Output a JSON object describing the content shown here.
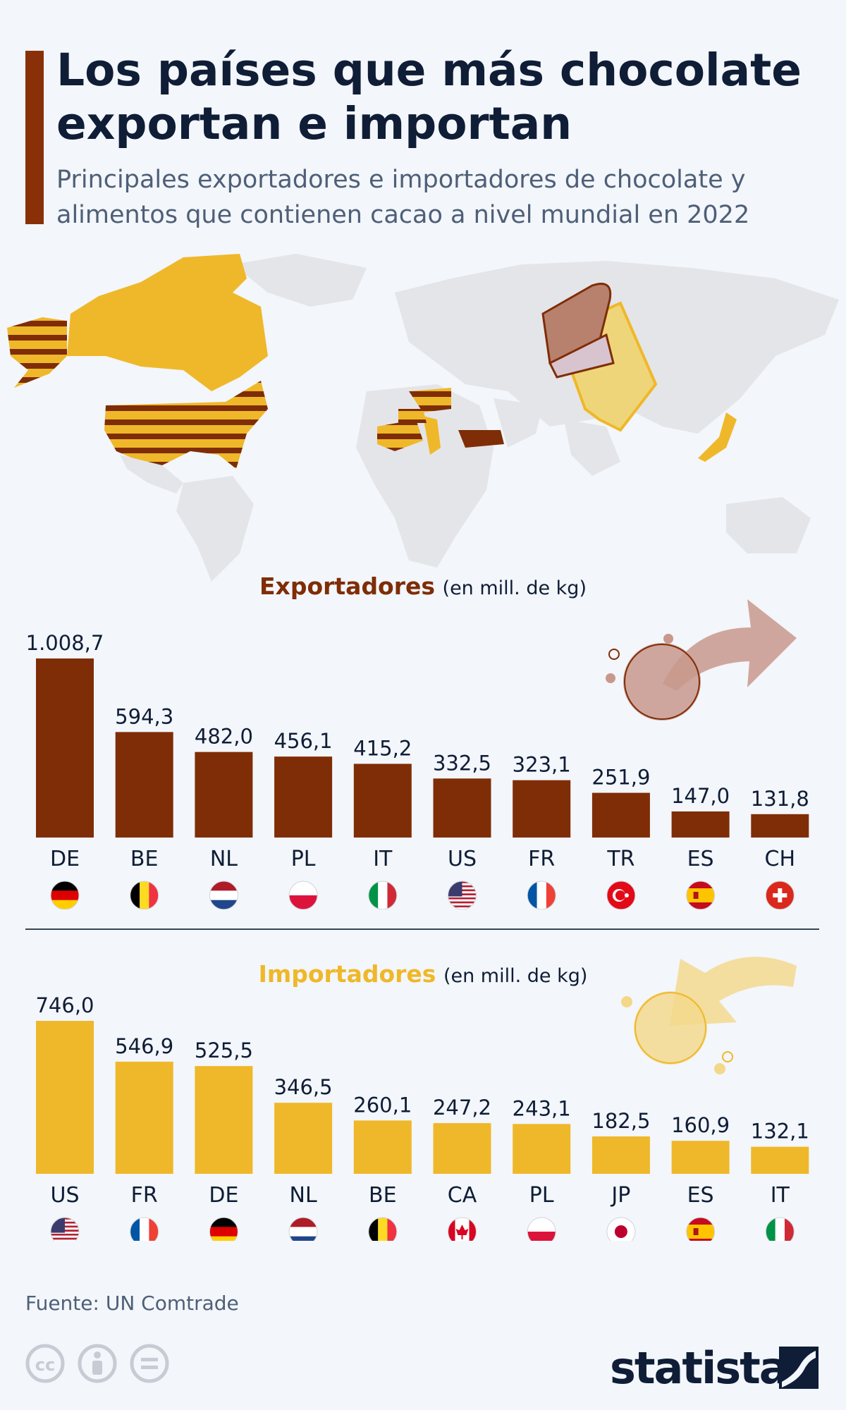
{
  "title": "Los países que más chocolate exportan e importan",
  "subtitle": "Principales exportadores e importadores de chocolate y alimentos que contienen cacao a nivel mundial en 2022",
  "colors": {
    "export": "#7f2d07",
    "import": "#efb82a",
    "text": "#0f1d36",
    "muted": "#4e5f78"
  },
  "chart_data": [
    {
      "type": "bar",
      "title": "Exportadores",
      "unit": "(en mill. de kg)",
      "categories": [
        "DE",
        "BE",
        "NL",
        "PL",
        "IT",
        "US",
        "FR",
        "TR",
        "ES",
        "CH"
      ],
      "values": [
        1008.7,
        594.3,
        482.0,
        456.1,
        415.2,
        332.5,
        323.1,
        251.9,
        147.0,
        131.8
      ],
      "value_labels": [
        "1.008,7",
        "594,3",
        "482,0",
        "456,1",
        "415,2",
        "332,5",
        "323,1",
        "251,9",
        "147,0",
        "131,8"
      ],
      "flags": [
        "de",
        "be",
        "nl",
        "pl",
        "it",
        "us",
        "fr",
        "tr",
        "es",
        "ch"
      ],
      "color": "#7f2d07"
    },
    {
      "type": "bar",
      "title": "Importadores",
      "unit": "(en mill. de kg)",
      "categories": [
        "US",
        "FR",
        "DE",
        "NL",
        "BE",
        "CA",
        "PL",
        "JP",
        "ES",
        "IT"
      ],
      "values": [
        746.0,
        546.9,
        525.5,
        346.5,
        260.1,
        247.2,
        243.1,
        182.5,
        160.9,
        132.1
      ],
      "value_labels": [
        "746,0",
        "546,9",
        "525,5",
        "346,5",
        "260,1",
        "247,2",
        "243,1",
        "182,5",
        "160,9",
        "132,1"
      ],
      "flags": [
        "us",
        "fr",
        "de",
        "nl",
        "be",
        "ca",
        "pl",
        "jp",
        "es",
        "it"
      ],
      "color": "#efb82a"
    }
  ],
  "source": "Fuente: UN Comtrade",
  "brand": "statista",
  "icons": [
    "world-map-illustration",
    "chocolate-bar-icon",
    "export-arrow-icon",
    "import-arrow-icon",
    "cc-license-icon",
    "attribution-icon",
    "no-derivatives-icon",
    "statista-logo-icon"
  ]
}
